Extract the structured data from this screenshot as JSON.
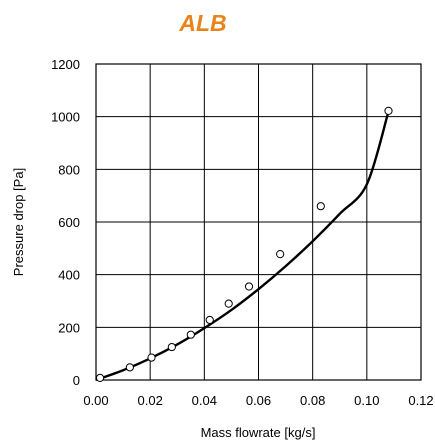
{
  "chart_data": {
    "type": "scatter",
    "title": "ALB",
    "xlabel": "Mass flowrate [kg/s]",
    "ylabel": "Pressure drop [Pa]",
    "xlim": [
      0,
      0.12
    ],
    "ylim": [
      0,
      1200
    ],
    "xticks": [
      "0.00",
      "0.02",
      "0.04",
      "0.06",
      "0.08",
      "0.10",
      "0.12"
    ],
    "yticks": [
      "0",
      "200",
      "400",
      "600",
      "800",
      "1000",
      "1200"
    ],
    "grid": true,
    "legend": "none",
    "series": [
      {
        "marker": "open-circle",
        "x": [
          0.0015,
          0.0125,
          0.0205,
          0.028,
          0.035,
          0.042,
          0.049,
          0.0565,
          0.068,
          0.083,
          0.108
        ],
        "y": [
          8,
          48,
          85,
          125,
          172,
          228,
          290,
          355,
          478,
          660,
          1022
        ]
      },
      {
        "line": "fit-curve",
        "x": [
          0,
          0.01,
          0.02,
          0.03,
          0.04,
          0.05,
          0.06,
          0.07,
          0.08,
          0.09,
          0.1,
          0.108
        ],
        "y": [
          0,
          37,
          82,
          135,
          197,
          266,
          345,
          432,
          527,
          631,
          743,
          1020
        ]
      }
    ],
    "colors": {
      "title": "#E8841A",
      "line": "#000000",
      "grid": "#000000",
      "marker_fill": "#ffffff"
    }
  }
}
